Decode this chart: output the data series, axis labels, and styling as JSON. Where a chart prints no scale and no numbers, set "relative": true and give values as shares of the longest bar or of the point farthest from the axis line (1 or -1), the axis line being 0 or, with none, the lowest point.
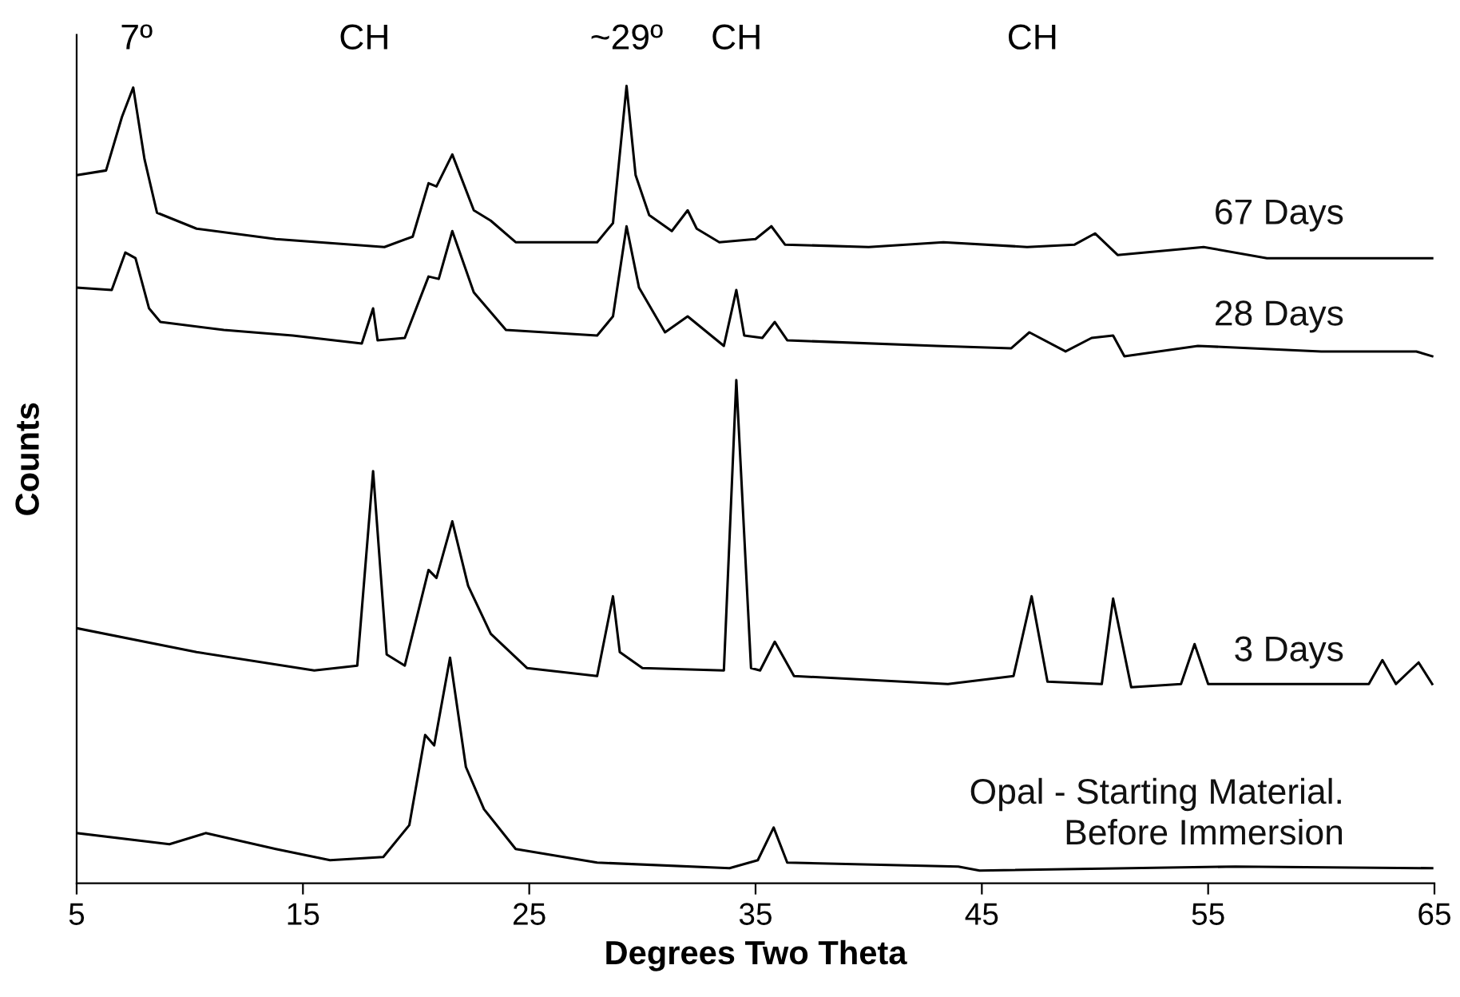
{
  "chart_data": {
    "type": "line",
    "relative": true,
    "xlabel": "Degrees Two Theta",
    "ylabel": "Counts",
    "xlim": [
      5,
      65
    ],
    "xticks": [
      5,
      15,
      25,
      35,
      45,
      55,
      65
    ],
    "grid": false,
    "legend": false,
    "marker": "none",
    "line_style": "solid",
    "annotations": [
      "7º",
      "CH",
      "~29º",
      "CH",
      "CH"
    ],
    "series": [
      {
        "name": "67 Days",
        "color": "#000000",
        "x": [
          5.0,
          6.3,
          7.0,
          7.5,
          8.0,
          8.55,
          10.3,
          13.8,
          18.6,
          19.85,
          20.55,
          20.9,
          21.6,
          22.55,
          23.3,
          24.4,
          28.0,
          28.7,
          29.3,
          29.7,
          30.3,
          31.3,
          32.0,
          32.4,
          33.4,
          35.0,
          35.7,
          36.3,
          40.0,
          43.3,
          47.0,
          49.1,
          50.0,
          51.0,
          54.8,
          57.6,
          64.9
        ],
        "values": [
          0.888,
          0.894,
          0.961,
          0.998,
          0.908,
          0.841,
          0.821,
          0.808,
          0.798,
          0.811,
          0.878,
          0.874,
          0.914,
          0.844,
          0.831,
          0.804,
          0.804,
          0.828,
          1.0,
          0.888,
          0.838,
          0.818,
          0.844,
          0.821,
          0.804,
          0.808,
          0.824,
          0.801,
          0.798,
          0.804,
          0.798,
          0.801,
          0.815,
          0.788,
          0.798,
          0.784,
          0.784
        ]
      },
      {
        "name": "28 Days",
        "color": "#000000",
        "x": [
          5.0,
          6.55,
          7.15,
          7.6,
          8.2,
          8.7,
          11.5,
          14.55,
          17.6,
          18.1,
          18.3,
          19.5,
          20.55,
          21.0,
          21.6,
          22.55,
          23.97,
          28.0,
          28.7,
          29.3,
          29.85,
          31.0,
          32.0,
          33.6,
          34.15,
          34.5,
          35.3,
          35.85,
          36.4,
          43.0,
          46.3,
          47.1,
          48.7,
          49.85,
          50.8,
          51.3,
          54.55,
          60.0,
          64.2,
          64.9
        ],
        "values": [
          0.747,
          0.744,
          0.791,
          0.784,
          0.721,
          0.704,
          0.694,
          0.687,
          0.677,
          0.721,
          0.681,
          0.684,
          0.761,
          0.758,
          0.818,
          0.741,
          0.694,
          0.687,
          0.711,
          0.824,
          0.747,
          0.691,
          0.711,
          0.674,
          0.744,
          0.687,
          0.684,
          0.704,
          0.681,
          0.674,
          0.671,
          0.691,
          0.667,
          0.684,
          0.687,
          0.661,
          0.674,
          0.667,
          0.667,
          0.661
        ]
      },
      {
        "name": "3 Days",
        "color": "#000000",
        "x": [
          5.0,
          10.3,
          15.5,
          17.4,
          18.1,
          18.7,
          19.5,
          20.55,
          20.9,
          21.6,
          22.3,
          23.3,
          24.9,
          28.0,
          28.7,
          29.0,
          30.0,
          33.6,
          34.15,
          34.8,
          35.2,
          35.85,
          36.7,
          43.5,
          46.4,
          47.2,
          47.9,
          50.3,
          50.8,
          51.6,
          53.8,
          54.4,
          55.0,
          62.1,
          62.7,
          63.3,
          64.3,
          64.9
        ],
        "values": [
          0.32,
          0.29,
          0.267,
          0.273,
          0.517,
          0.287,
          0.273,
          0.393,
          0.383,
          0.454,
          0.373,
          0.313,
          0.27,
          0.26,
          0.36,
          0.29,
          0.27,
          0.267,
          0.631,
          0.27,
          0.267,
          0.303,
          0.26,
          0.25,
          0.26,
          0.36,
          0.253,
          0.25,
          0.357,
          0.246,
          0.25,
          0.3,
          0.25,
          0.25,
          0.28,
          0.25,
          0.277,
          0.25
        ]
      },
      {
        "name": "Opal - Starting Material.\nBefore Immersion",
        "color": "#000000",
        "x": [
          5.0,
          9.1,
          10.7,
          13.8,
          16.2,
          18.55,
          19.7,
          20.4,
          20.8,
          21.5,
          22.2,
          23.0,
          24.4,
          28.0,
          33.85,
          35.1,
          35.8,
          36.4,
          43.96,
          44.9,
          56.2,
          64.9
        ],
        "values": [
          0.063,
          0.049,
          0.063,
          0.043,
          0.029,
          0.033,
          0.073,
          0.186,
          0.173,
          0.283,
          0.146,
          0.093,
          0.043,
          0.026,
          0.019,
          0.029,
          0.07,
          0.026,
          0.021,
          0.016,
          0.021,
          0.019
        ]
      }
    ]
  }
}
